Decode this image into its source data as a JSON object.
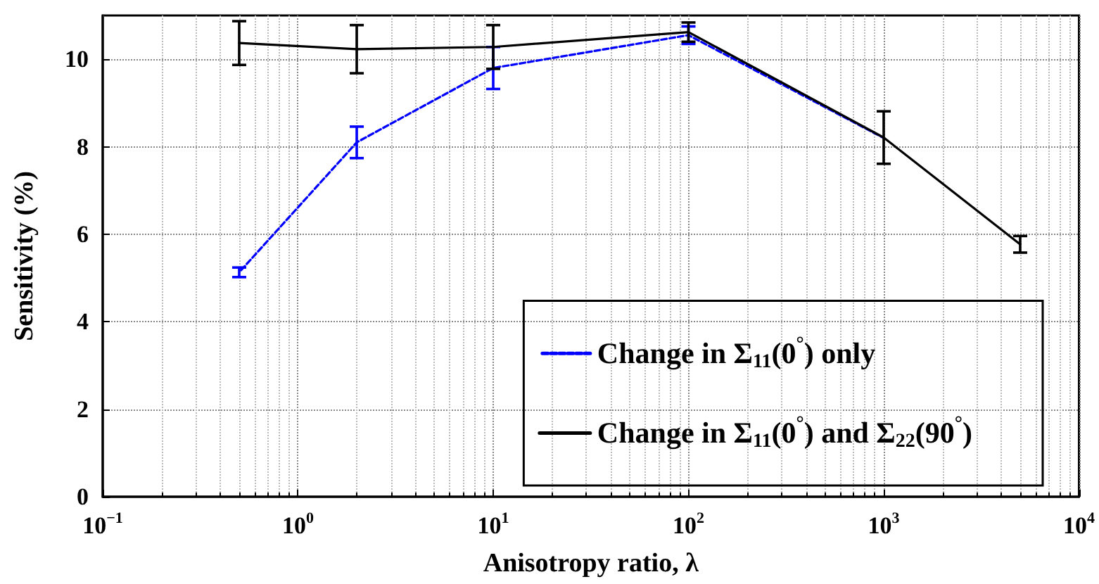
{
  "chart_data": {
    "type": "line",
    "xlabel": "Anisotropy ratio, λ",
    "ylabel": "Sensitivity (%)",
    "log": "x",
    "grid": true,
    "legend": "bottom right",
    "marker": "none",
    "x": [
      0.5,
      2,
      10,
      100,
      1000,
      5000
    ],
    "xlim": [
      0.1,
      10000
    ],
    "xticks": [
      {
        "value": 0.1,
        "label": "10$^{−1}$"
      },
      {
        "value": 1,
        "label": "10$^{0}$"
      },
      {
        "value": 10,
        "label": "10$^{1}$"
      },
      {
        "value": 100,
        "label": "10$^{2}$"
      },
      {
        "value": 1000,
        "label": "10$^{3}$"
      },
      {
        "value": 10000,
        "label": "10$^{4}$"
      }
    ],
    "ylim": [
      0,
      11
    ],
    "yticks": [
      0,
      2,
      4,
      6,
      8,
      10
    ],
    "series": [
      {
        "name": "Change in Σ$_{11}$(0$^{°}$) only",
        "color": "#0000ff",
        "line_style": "dashed",
        "values": [
          5.13,
          8.1,
          9.8,
          10.55,
          8.2,
          null
        ],
        "errors": [
          0.11,
          0.36,
          0.48,
          0.2,
          null,
          null
        ]
      },
      {
        "name": "Change in Σ$_{11}$(0$^{°}$) and Σ$_{22}$(90$^{°}$)",
        "color": "#000000",
        "line_style": "solid",
        "values": [
          10.37,
          10.23,
          10.28,
          10.62,
          8.21,
          5.77
        ],
        "errors": [
          0.5,
          0.55,
          0.5,
          0.22,
          0.6,
          0.19
        ]
      }
    ]
  }
}
